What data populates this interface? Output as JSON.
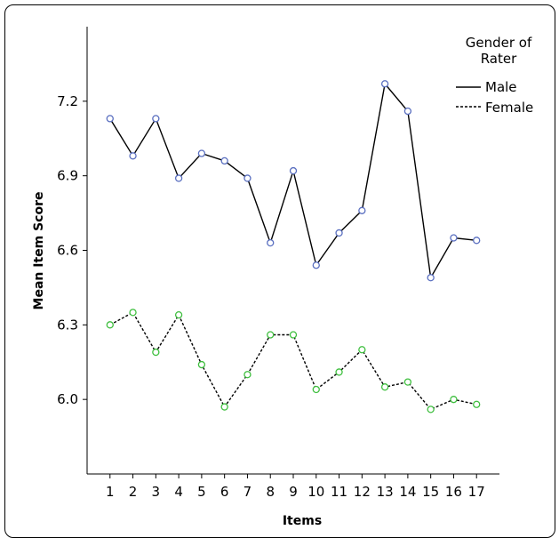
{
  "chart_data": {
    "type": "line",
    "xlabel": "Items",
    "ylabel": "Mean Item Score",
    "x": [
      1,
      2,
      3,
      4,
      5,
      6,
      7,
      8,
      9,
      10,
      11,
      12,
      13,
      14,
      15,
      16,
      17
    ],
    "x_ticks": [
      "1",
      "2",
      "3",
      "4",
      "5",
      "6",
      "7",
      "8",
      "9",
      "10",
      "11",
      "12",
      "13",
      "14",
      "15",
      "16",
      "17"
    ],
    "y_ticks": [
      "6.0",
      "6.3",
      "6.6",
      "6.9",
      "7.2"
    ],
    "y_tick_values": [
      6.0,
      6.3,
      6.6,
      6.9,
      7.2
    ],
    "xlim": [
      0,
      18
    ],
    "ylim": [
      5.7,
      7.5
    ],
    "grid": false,
    "legend": {
      "title_line1": "Gender of",
      "title_line2": "Rater",
      "placement": "top-right"
    },
    "series": [
      {
        "name": "Male",
        "style": "solid",
        "marker_color": "#5a6fc0",
        "values": [
          7.13,
          6.98,
          7.13,
          6.89,
          6.99,
          6.96,
          6.89,
          6.63,
          6.92,
          6.54,
          6.67,
          6.76,
          7.27,
          7.16,
          6.49,
          6.65,
          6.64
        ]
      },
      {
        "name": "Female",
        "style": "dashed",
        "marker_color": "#3fbf3f",
        "values": [
          6.3,
          6.35,
          6.19,
          6.34,
          6.14,
          5.97,
          6.1,
          6.26,
          6.26,
          6.04,
          6.11,
          6.2,
          6.05,
          6.07,
          5.96,
          6.0,
          5.98
        ]
      }
    ]
  }
}
